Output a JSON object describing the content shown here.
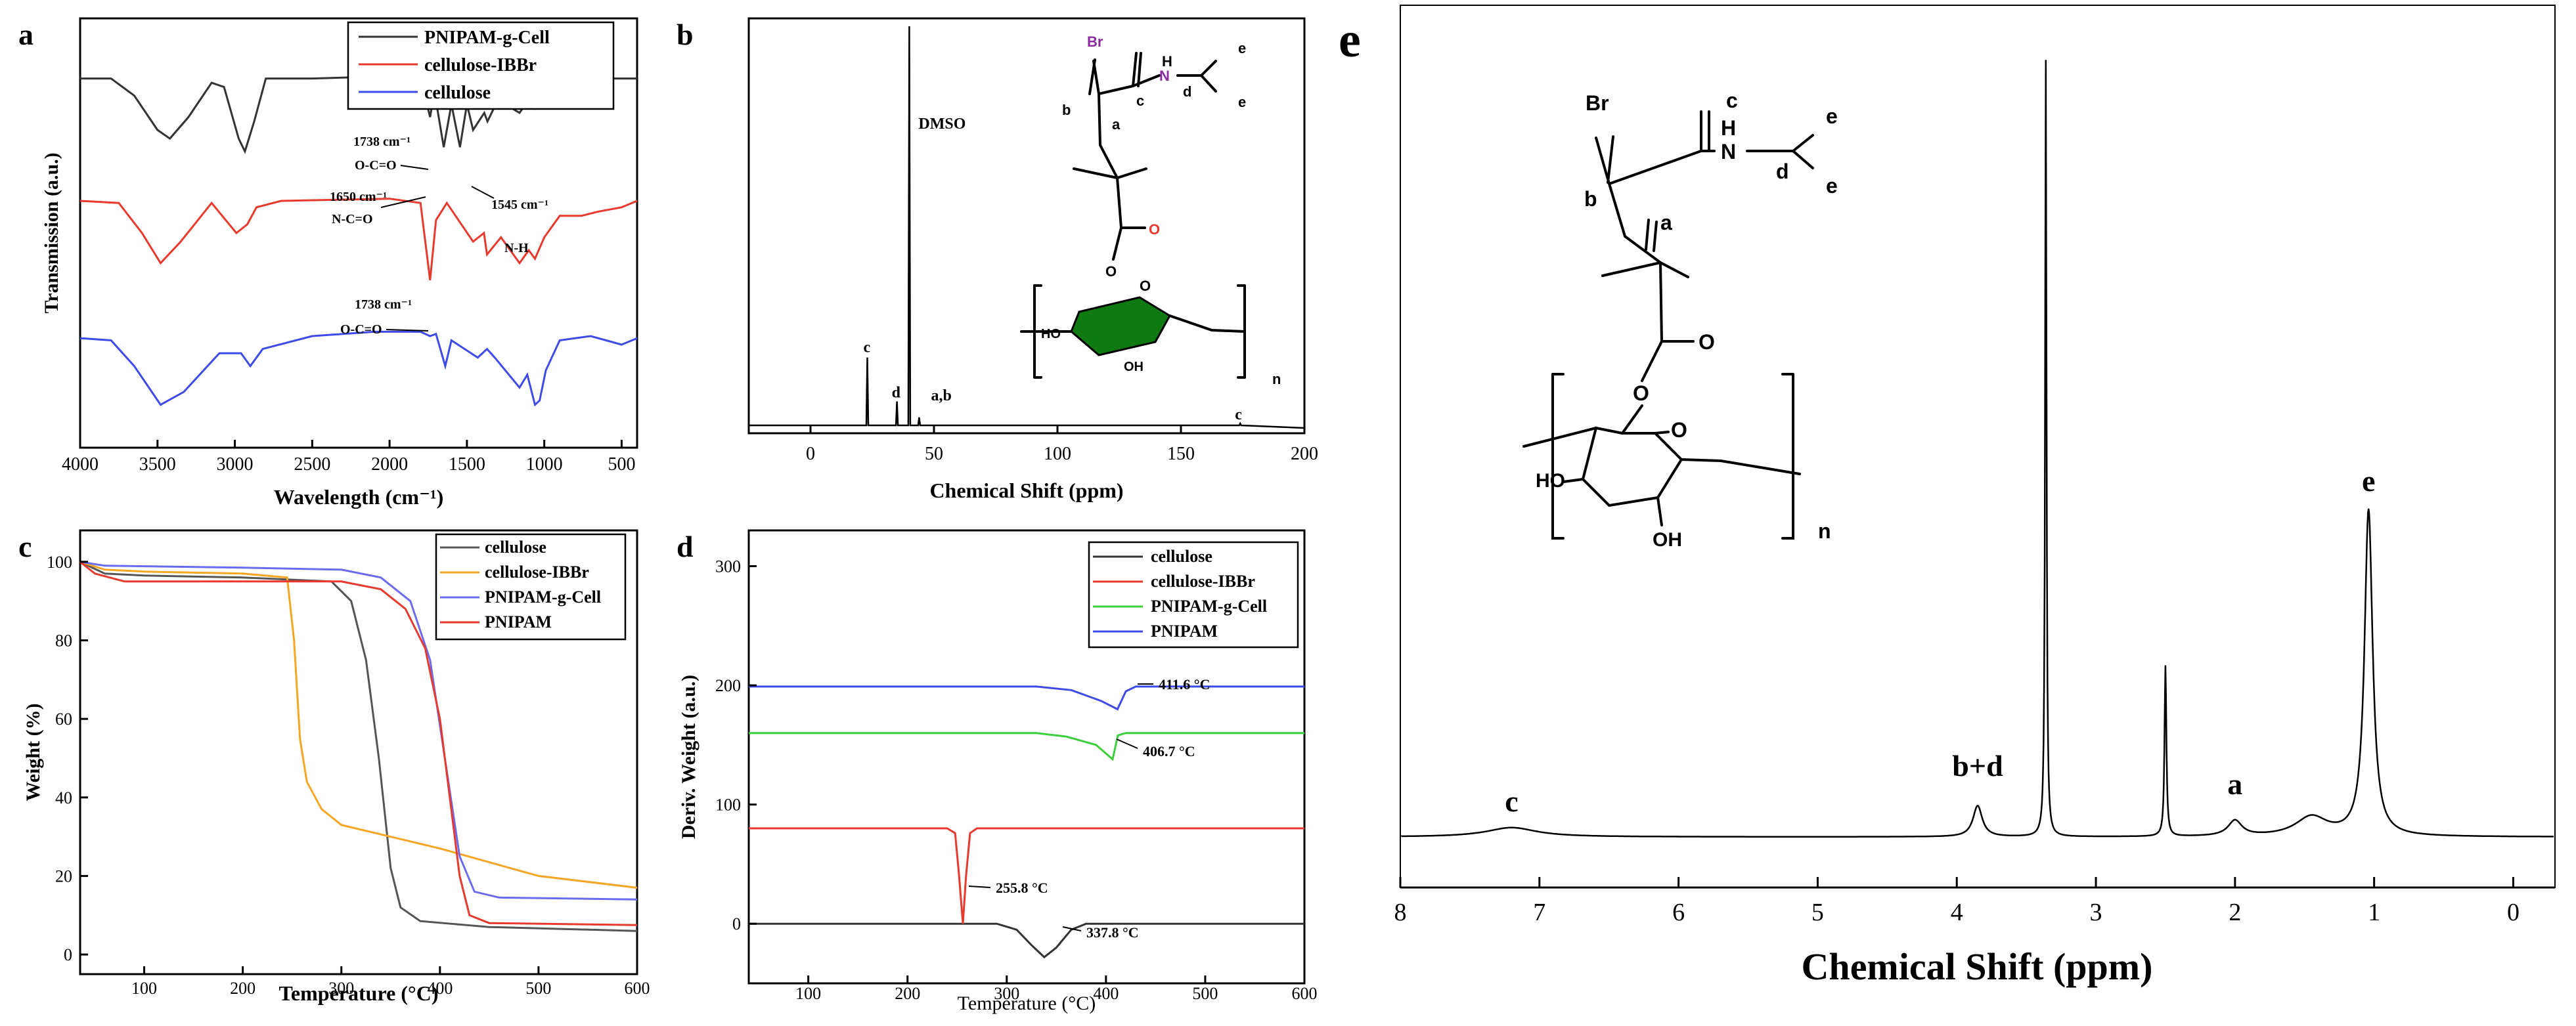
{
  "chart_data": [
    {
      "panel": "a",
      "type": "line",
      "panel_label": "a",
      "xlabel": "Wavelength (cm⁻¹)",
      "ylabel": "Transmission (a.u.)",
      "xlim": [
        4000,
        400
      ],
      "x_ticks": [
        4000,
        3500,
        3000,
        2500,
        2000,
        1500,
        1000,
        500
      ],
      "legend": {
        "position": "top-right"
      },
      "series": [
        {
          "name": "PNIPAM-g-Cell",
          "color": "#333333",
          "points": [
            [
              4000,
              0.86
            ],
            [
              3800,
              0.86
            ],
            [
              3650,
              0.82
            ],
            [
              3500,
              0.74
            ],
            [
              3420,
              0.72
            ],
            [
              3300,
              0.77
            ],
            [
              3150,
              0.85
            ],
            [
              3070,
              0.84
            ],
            [
              2975,
              0.72
            ],
            [
              2935,
              0.69
            ],
            [
              2875,
              0.76
            ],
            [
              2800,
              0.86
            ],
            [
              2500,
              0.86
            ],
            [
              2000,
              0.865
            ],
            [
              1800,
              0.86
            ],
            [
              1738,
              0.77
            ],
            [
              1710,
              0.83
            ],
            [
              1650,
              0.7
            ],
            [
              1600,
              0.8
            ],
            [
              1545,
              0.7
            ],
            [
              1500,
              0.8
            ],
            [
              1460,
              0.74
            ],
            [
              1388,
              0.78
            ],
            [
              1367,
              0.76
            ],
            [
              1300,
              0.81
            ],
            [
              1160,
              0.78
            ],
            [
              1100,
              0.81
            ],
            [
              1060,
              0.79
            ],
            [
              950,
              0.84
            ],
            [
              850,
              0.85
            ],
            [
              600,
              0.86
            ],
            [
              400,
              0.86
            ]
          ]
        },
        {
          "name": "cellulose-IBBr",
          "color": "#e8392f",
          "points": [
            [
              4000,
              0.575
            ],
            [
              3750,
              0.57
            ],
            [
              3600,
              0.5
            ],
            [
              3480,
              0.43
            ],
            [
              3350,
              0.48
            ],
            [
              3150,
              0.57
            ],
            [
              2990,
              0.5
            ],
            [
              2920,
              0.52
            ],
            [
              2860,
              0.56
            ],
            [
              2700,
              0.575
            ],
            [
              2000,
              0.58
            ],
            [
              1800,
              0.57
            ],
            [
              1738,
              0.39
            ],
            [
              1700,
              0.53
            ],
            [
              1630,
              0.57
            ],
            [
              1460,
              0.48
            ],
            [
              1390,
              0.5
            ],
            [
              1370,
              0.45
            ],
            [
              1280,
              0.49
            ],
            [
              1160,
              0.43
            ],
            [
              1100,
              0.46
            ],
            [
              1060,
              0.44
            ],
            [
              1000,
              0.49
            ],
            [
              900,
              0.54
            ],
            [
              760,
              0.54
            ],
            [
              650,
              0.55
            ],
            [
              500,
              0.56
            ],
            [
              400,
              0.575
            ]
          ]
        },
        {
          "name": "cellulose",
          "color": "#3f4be8",
          "points": [
            [
              4000,
              0.255
            ],
            [
              3800,
              0.25
            ],
            [
              3650,
              0.19
            ],
            [
              3480,
              0.1
            ],
            [
              3330,
              0.13
            ],
            [
              3100,
              0.22
            ],
            [
              2960,
              0.22
            ],
            [
              2900,
              0.19
            ],
            [
              2820,
              0.23
            ],
            [
              2500,
              0.26
            ],
            [
              2100,
              0.27
            ],
            [
              1800,
              0.27
            ],
            [
              1738,
              0.26
            ],
            [
              1700,
              0.265
            ],
            [
              1640,
              0.19
            ],
            [
              1600,
              0.25
            ],
            [
              1430,
              0.21
            ],
            [
              1370,
              0.23
            ],
            [
              1320,
              0.21
            ],
            [
              1160,
              0.14
            ],
            [
              1110,
              0.17
            ],
            [
              1060,
              0.1
            ],
            [
              1030,
              0.11
            ],
            [
              990,
              0.18
            ],
            [
              900,
              0.25
            ],
            [
              700,
              0.26
            ],
            [
              500,
              0.24
            ],
            [
              400,
              0.255
            ]
          ]
        }
      ],
      "annotations": [
        {
          "text": "1738 cm⁻¹",
          "sub": "O-C=O"
        },
        {
          "text": "1650 cm⁻¹",
          "sub": "N-C=O"
        },
        {
          "text": "1545 cm⁻¹",
          "sub": "N-H"
        },
        {
          "text": "1738 cm⁻¹",
          "sub": "O-C=O"
        }
      ]
    },
    {
      "panel": "b",
      "type": "line",
      "panel_label": "b",
      "xlabel": "Chemical Shift (ppm)",
      "xlim": [
        -25,
        200
      ],
      "x_ticks": [
        0,
        50,
        100,
        150,
        200
      ],
      "peaks": [
        {
          "x": 23,
          "height": 0.17,
          "label": "c"
        },
        {
          "x": 35,
          "height": 0.06,
          "label": "d"
        },
        {
          "x": 40,
          "height": 1.0,
          "label": "DMSO"
        },
        {
          "x": 44,
          "height": 0.02,
          "label": "a,b"
        },
        {
          "x": 174,
          "height": 0.005,
          "label": "c"
        }
      ],
      "structure_labels": [
        "Br",
        "c",
        "N",
        "H",
        "d",
        "e",
        "e",
        "b",
        "a",
        "O",
        "O",
        "O",
        "HO",
        "OH",
        "n"
      ]
    },
    {
      "panel": "c",
      "type": "line",
      "panel_label": "c",
      "xlabel": "Temperature (°C)",
      "ylabel": "Weight (%)",
      "xlim": [
        35,
        600
      ],
      "ylim": [
        -5,
        108
      ],
      "x_ticks": [
        100,
        200,
        300,
        400,
        500,
        600
      ],
      "y_ticks": [
        0,
        20,
        40,
        60,
        80,
        100
      ],
      "legend": {
        "position": "top-right"
      },
      "series": [
        {
          "name": "cellulose",
          "color": "#555555",
          "points": [
            [
              35,
              100
            ],
            [
              60,
              97
            ],
            [
              100,
              96.5
            ],
            [
              200,
              96
            ],
            [
              290,
              95
            ],
            [
              310,
              90
            ],
            [
              325,
              75
            ],
            [
              338,
              50
            ],
            [
              350,
              22
            ],
            [
              360,
              12
            ],
            [
              380,
              8.5
            ],
            [
              450,
              7
            ],
            [
              600,
              6
            ]
          ]
        },
        {
          "name": "cellulose-IBBr",
          "color": "#f5a623",
          "points": [
            [
              35,
              100
            ],
            [
              60,
              98
            ],
            [
              100,
              97.5
            ],
            [
              200,
              97
            ],
            [
              245,
              96
            ],
            [
              252,
              80
            ],
            [
              258,
              55
            ],
            [
              265,
              44
            ],
            [
              280,
              37
            ],
            [
              300,
              33
            ],
            [
              400,
              27
            ],
            [
              500,
              20
            ],
            [
              600,
              17
            ]
          ]
        },
        {
          "name": "PNIPAM-g-Cell",
          "color": "#6b6bf0",
          "points": [
            [
              35,
              100
            ],
            [
              60,
              99
            ],
            [
              200,
              98.5
            ],
            [
              300,
              98
            ],
            [
              340,
              96
            ],
            [
              370,
              90
            ],
            [
              390,
              75
            ],
            [
              405,
              50
            ],
            [
              420,
              25
            ],
            [
              435,
              16
            ],
            [
              460,
              14.5
            ],
            [
              600,
              14
            ]
          ]
        },
        {
          "name": "PNIPAM",
          "color": "#e8392f",
          "points": [
            [
              35,
              100
            ],
            [
              50,
              97
            ],
            [
              80,
              95
            ],
            [
              200,
              95
            ],
            [
              300,
              95
            ],
            [
              340,
              93
            ],
            [
              365,
              88
            ],
            [
              385,
              78
            ],
            [
              400,
              60
            ],
            [
              410,
              40
            ],
            [
              420,
              20
            ],
            [
              430,
              10
            ],
            [
              450,
              8
            ],
            [
              600,
              7.5
            ]
          ]
        }
      ]
    },
    {
      "panel": "d",
      "type": "line",
      "panel_label": "d",
      "xlabel": "Temperature (°C)",
      "ylabel": "Deriv. Weight (a.u.)",
      "xlim": [
        40,
        600
      ],
      "ylim": [
        -50,
        330
      ],
      "x_ticks": [
        100,
        200,
        300,
        400,
        500,
        600
      ],
      "y_ticks": [
        0,
        100,
        200,
        300
      ],
      "legend": {
        "position": "top-right"
      },
      "series": [
        {
          "name": "cellulose",
          "color": "#333333",
          "points": [
            [
              40,
              0
            ],
            [
              290,
              0
            ],
            [
              310,
              -5
            ],
            [
              325,
              -18
            ],
            [
              337.8,
              -28
            ],
            [
              350,
              -20
            ],
            [
              365,
              -5
            ],
            [
              380,
              0
            ],
            [
              600,
              0
            ]
          ]
        },
        {
          "name": "cellulose-IBBr",
          "color": "#e8392f",
          "points": [
            [
              40,
              80
            ],
            [
              240,
              80
            ],
            [
              248,
              76
            ],
            [
              252,
              40
            ],
            [
              255.8,
              0
            ],
            [
              259,
              40
            ],
            [
              263,
              76
            ],
            [
              270,
              80
            ],
            [
              600,
              80
            ]
          ]
        },
        {
          "name": "PNIPAM-g-Cell",
          "color": "#3ccf3c",
          "points": [
            [
              40,
              160
            ],
            [
              330,
              160
            ],
            [
              360,
              157
            ],
            [
              390,
              150
            ],
            [
              406.7,
              138
            ],
            [
              412,
              158
            ],
            [
              420,
              160
            ],
            [
              600,
              160
            ]
          ]
        },
        {
          "name": "PNIPAM",
          "color": "#3f4be8",
          "points": [
            [
              40,
              199
            ],
            [
              330,
              199
            ],
            [
              365,
              196
            ],
            [
              395,
              187
            ],
            [
              411.6,
              180
            ],
            [
              420,
              195
            ],
            [
              430,
              199
            ],
            [
              600,
              199
            ]
          ]
        }
      ],
      "annotations": [
        "411.6 °C",
        "406.7 °C",
        "255.8 °C",
        "337.8 °C"
      ]
    },
    {
      "panel": "e",
      "type": "line",
      "panel_label": "e",
      "xlabel": "Chemical Shift (ppm)",
      "xlim": [
        8.0,
        -0.3
      ],
      "x_ticks": [
        8,
        7,
        6,
        5,
        4,
        3,
        2,
        1,
        0
      ],
      "peaks": [
        {
          "x": 7.2,
          "height": 0.012,
          "label": "c"
        },
        {
          "x": 3.85,
          "height": 0.04,
          "label": "b+d"
        },
        {
          "x": 3.36,
          "height": 1.0,
          "label": ""
        },
        {
          "x": 2.5,
          "height": 0.22,
          "label": ""
        },
        {
          "x": 2.0,
          "height": 0.02,
          "label": "a"
        },
        {
          "x": 1.45,
          "height": 0.025,
          "label": ""
        },
        {
          "x": 1.04,
          "height": 0.42,
          "label": "e"
        }
      ],
      "structure_labels": [
        "Br",
        "c",
        "N",
        "H",
        "d",
        "e",
        "e",
        "b",
        "a",
        "O",
        "O",
        "O",
        "HO",
        "OH",
        "n"
      ]
    }
  ]
}
